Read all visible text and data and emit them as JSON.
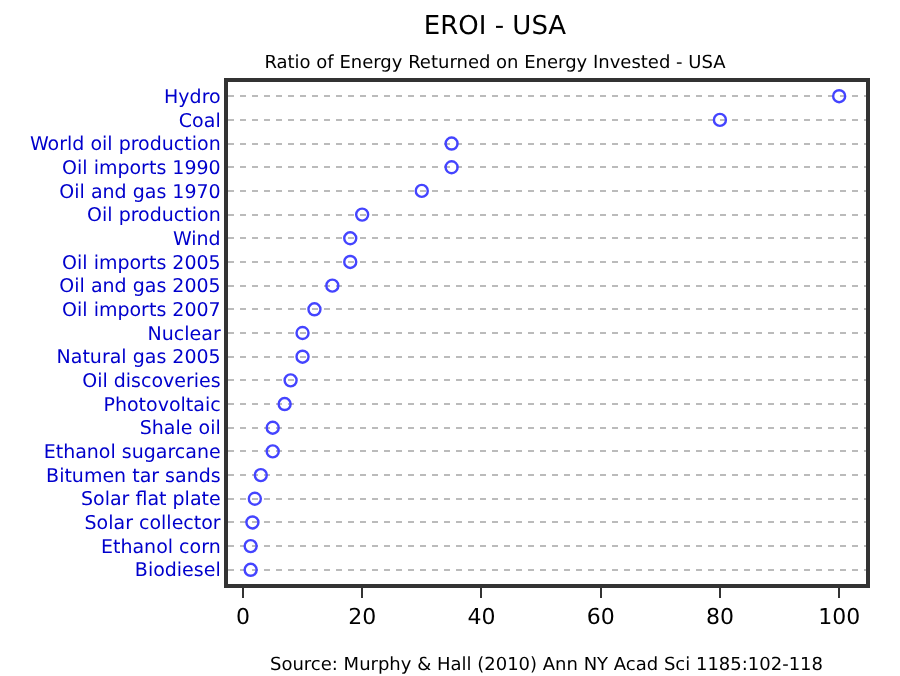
{
  "chart_data": {
    "type": "scatter",
    "orientation": "horizontal",
    "title": "EROI - USA",
    "subtitle": "Ratio of Energy Returned on Energy Invested - USA",
    "categories": [
      "Hydro",
      "Coal",
      "World oil production",
      "Oil imports 1990",
      "Oil and gas 1970",
      "Oil production",
      "Wind",
      "Oil imports 2005",
      "Oil and gas 2005",
      "Oil imports 2007",
      "Nuclear",
      "Natural gas 2005",
      "Oil discoveries",
      "Photovoltaic",
      "Shale oil",
      "Ethanol sugarcane",
      "Bitumen tar sands",
      "Solar flat plate",
      "Solar collector",
      "Ethanol corn",
      "Biodiesel"
    ],
    "values": [
      100,
      80,
      35,
      35,
      30,
      20,
      18,
      18,
      15,
      12,
      10,
      10,
      8,
      7,
      5,
      5,
      3,
      2,
      1.6,
      1.3,
      1.3
    ],
    "color": "#4444ff",
    "xlim": [
      -2.5,
      104.5
    ],
    "xticks": [
      0,
      20,
      40,
      60,
      80,
      100
    ],
    "grid": "y",
    "legend": false,
    "marker": "circle",
    "annotations": [
      "Source: Murphy & Hall (2010) Ann NY Acad Sci 1185:102-118"
    ]
  }
}
